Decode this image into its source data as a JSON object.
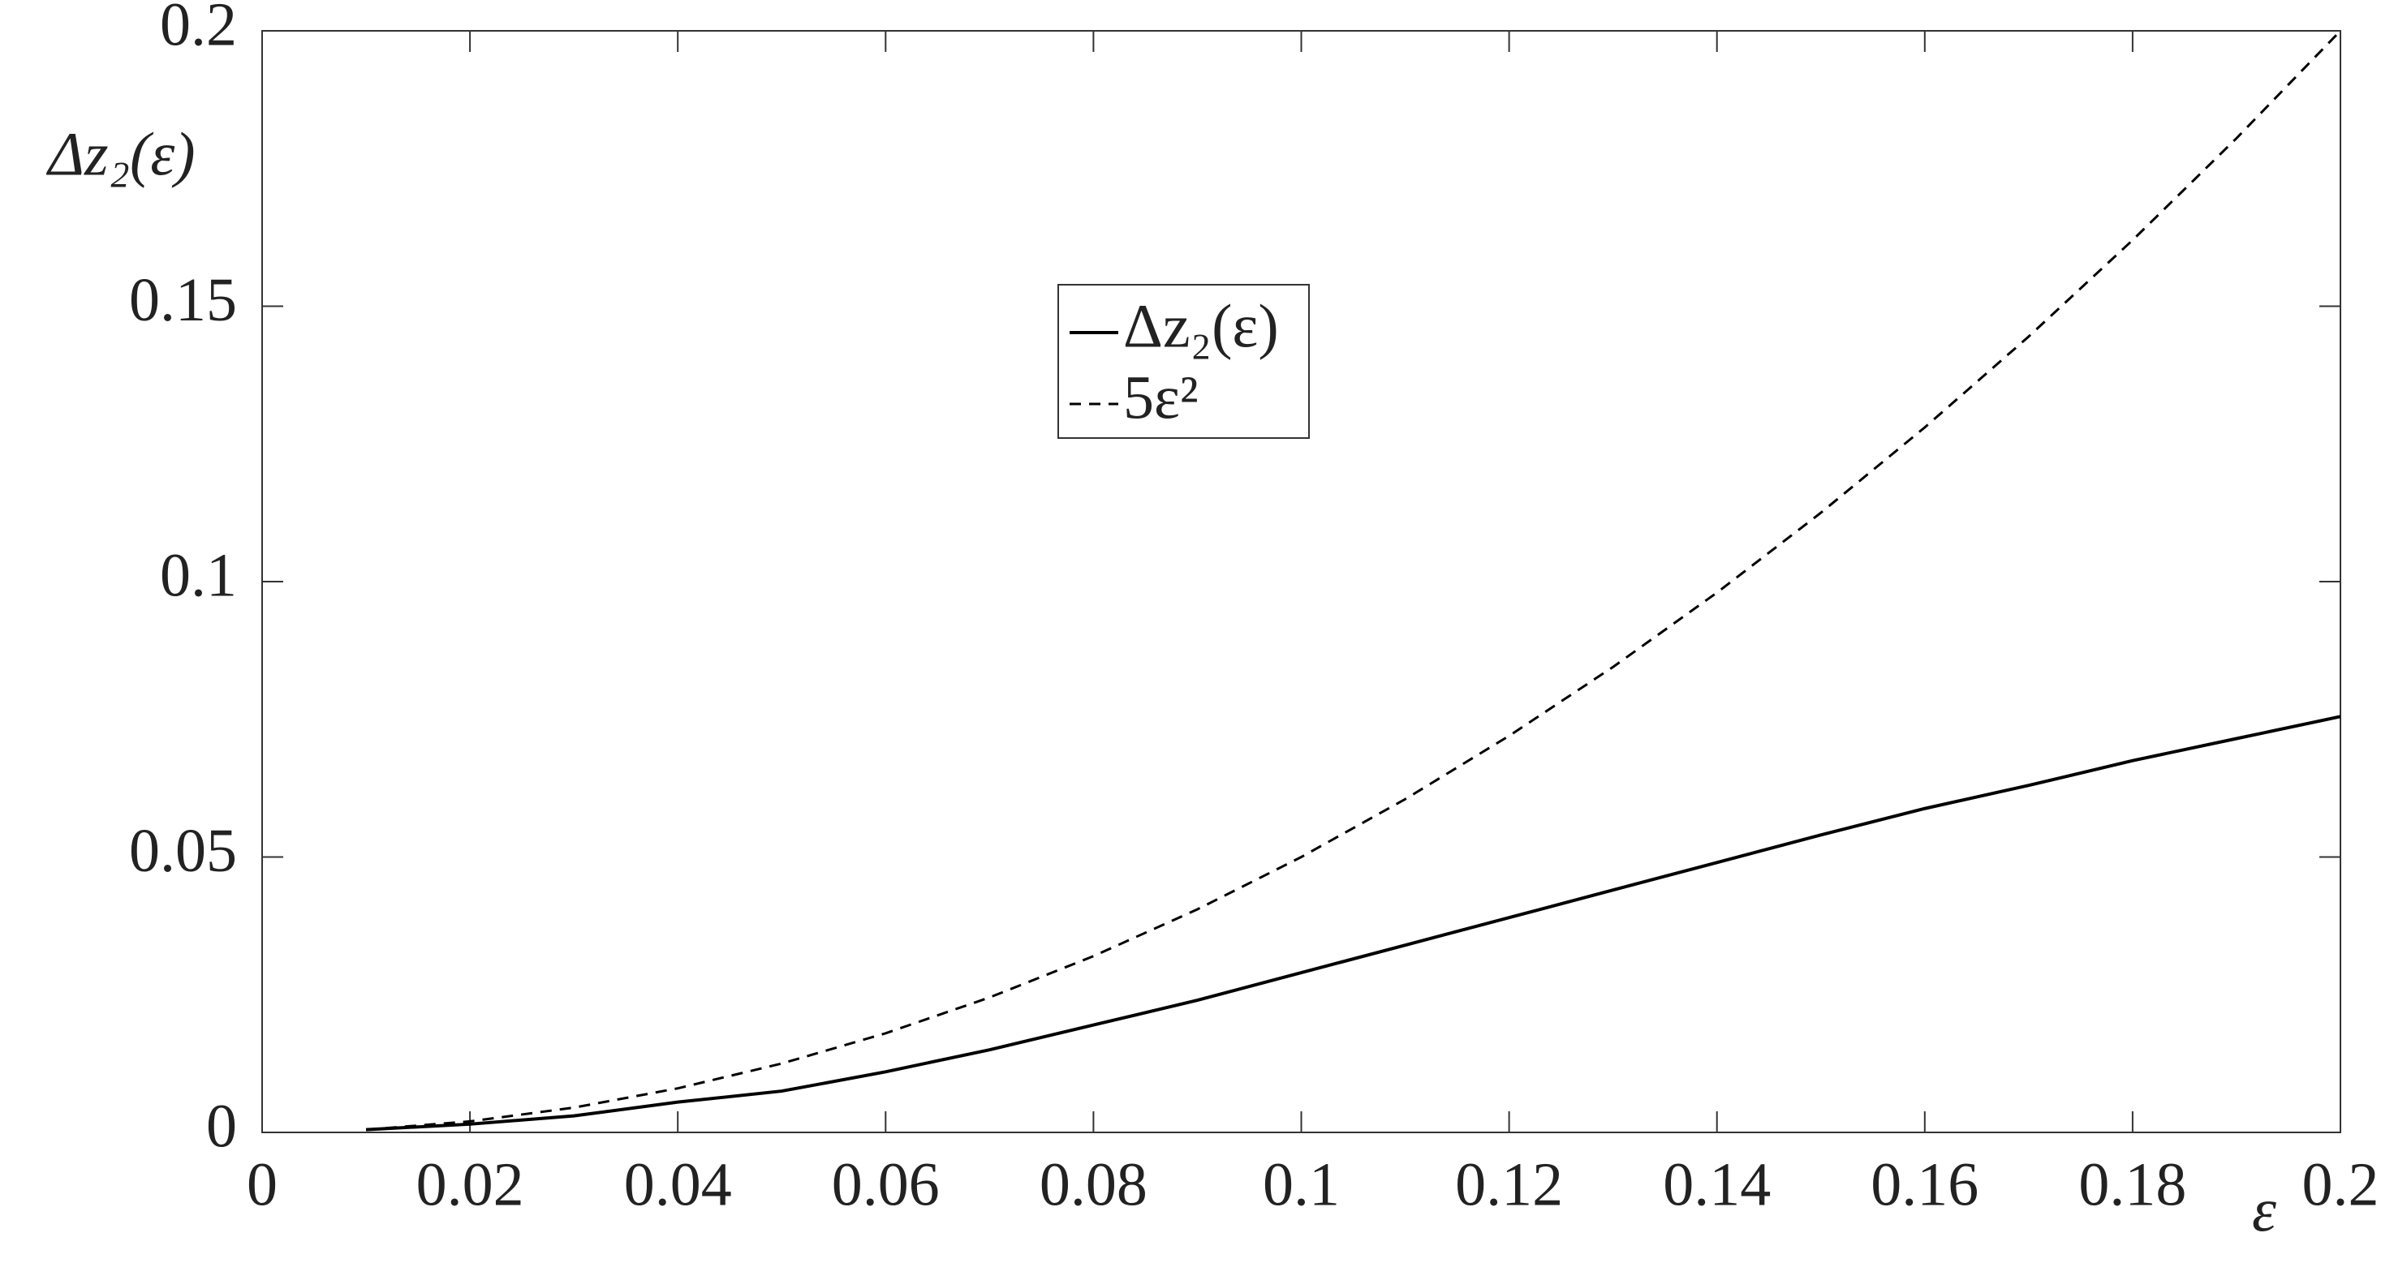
{
  "chart_data": {
    "type": "line",
    "xlabel": "ε",
    "ylabel": "Δz₂(ε)",
    "x": [
      0.01,
      0.02,
      0.03,
      0.04,
      0.05,
      0.06,
      0.07,
      0.08,
      0.09,
      0.1,
      0.11,
      0.12,
      0.13,
      0.14,
      0.15,
      0.16,
      0.17,
      0.18,
      0.19,
      0.2
    ],
    "series": [
      {
        "name": "Δz₂(ε)",
        "color": "#000000",
        "dash": false,
        "values": [
          0.0005,
          0.0015,
          0.003,
          0.0055,
          0.0075,
          0.011,
          0.015,
          0.0195,
          0.024,
          0.029,
          0.034,
          0.039,
          0.044,
          0.049,
          0.054,
          0.0588,
          0.063,
          0.0675,
          0.0715,
          0.0755
        ]
      },
      {
        "name": "5ε²",
        "color": "#000000",
        "dash": true,
        "values": [
          0.0005,
          0.002,
          0.0045,
          0.008,
          0.0125,
          0.018,
          0.0245,
          0.032,
          0.0405,
          0.05,
          0.0605,
          0.072,
          0.0845,
          0.098,
          0.1125,
          0.128,
          0.1445,
          0.162,
          0.1805,
          0.2
        ]
      }
    ],
    "xlim": [
      0,
      0.2
    ],
    "ylim": [
      0,
      0.2
    ],
    "xticks": [
      0,
      0.02,
      0.04,
      0.06,
      0.08,
      0.1,
      0.12,
      0.14,
      0.16,
      0.18,
      0.2
    ],
    "yticks": [
      0,
      0.05,
      0.1,
      0.15,
      0.2
    ],
    "grid": false
  }
}
